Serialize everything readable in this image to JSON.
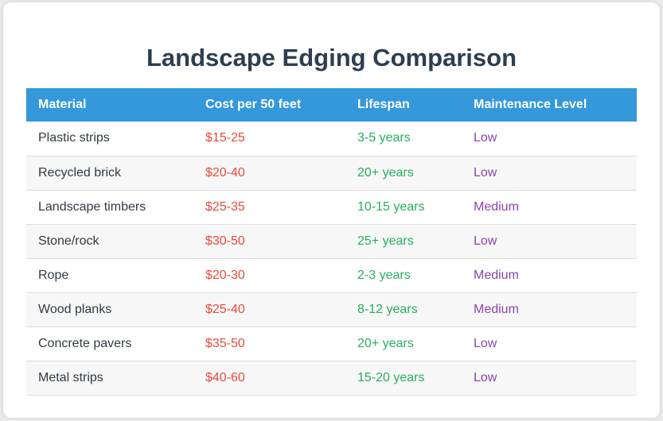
{
  "title": "Landscape Edging Comparison",
  "colors": {
    "header_bg": "#3498db",
    "title": "#2c3e50",
    "cost": "#e74c3c",
    "lifespan": "#27ae60",
    "maintenance": "#8e44ad"
  },
  "table": {
    "headers": [
      "Material",
      "Cost per 50 feet",
      "Lifespan",
      "Maintenance Level"
    ],
    "rows": [
      {
        "material": "Plastic strips",
        "cost": "$15-25",
        "lifespan": "3-5 years",
        "maintenance": "Low"
      },
      {
        "material": "Recycled brick",
        "cost": "$20-40",
        "lifespan": "20+ years",
        "maintenance": "Low"
      },
      {
        "material": "Landscape timbers",
        "cost": "$25-35",
        "lifespan": "10-15 years",
        "maintenance": "Medium"
      },
      {
        "material": "Stone/rock",
        "cost": "$30-50",
        "lifespan": "25+ years",
        "maintenance": "Low"
      },
      {
        "material": "Rope",
        "cost": "$20-30",
        "lifespan": "2-3 years",
        "maintenance": "Medium"
      },
      {
        "material": "Wood planks",
        "cost": "$25-40",
        "lifespan": "8-12 years",
        "maintenance": "Medium"
      },
      {
        "material": "Concrete pavers",
        "cost": "$35-50",
        "lifespan": "20+ years",
        "maintenance": "Low"
      },
      {
        "material": "Metal strips",
        "cost": "$40-60",
        "lifespan": "15-20 years",
        "maintenance": "Low"
      }
    ]
  }
}
